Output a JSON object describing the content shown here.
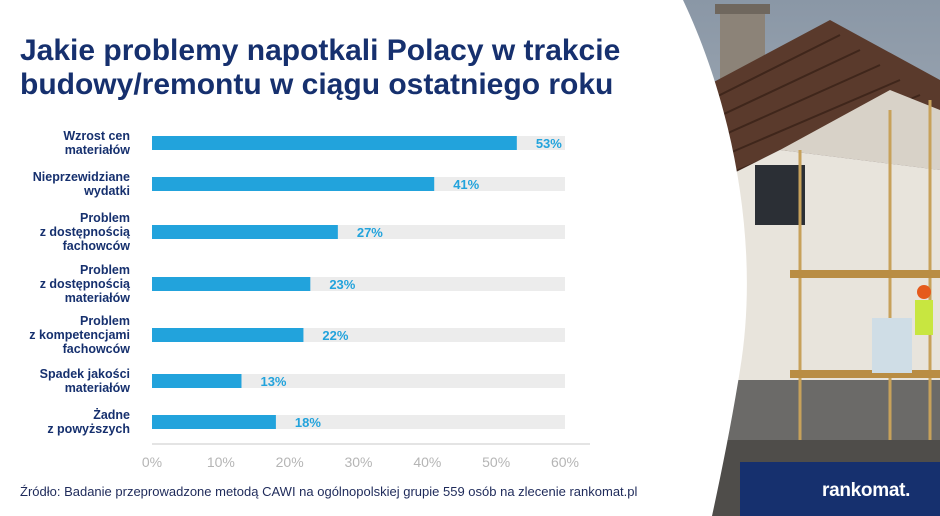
{
  "title": "Jakie problemy napotkali Polacy w trakcie budowy/remontu w ciągu ostatniego roku",
  "source": "Źródło: Badanie przeprowadzone metodą CAWI na ogólnopolskiej grupie 559 osób na zlecenie rankomat.pl",
  "logo": {
    "text": "rankomat."
  },
  "colors": {
    "bar": "#22a3dc",
    "track": "#ececec",
    "title": "#16306e",
    "band": "#16306e",
    "tick": "#b5b5b5"
  },
  "chart_data": {
    "type": "bar",
    "orientation": "horizontal",
    "categories": [
      [
        "Wzrost cen",
        "materiałów"
      ],
      [
        "Nieprzewidziane",
        "wydatki"
      ],
      [
        "Problem",
        "z dostępnością",
        "fachowców"
      ],
      [
        "Problem",
        "z dostępnością",
        "materiałów"
      ],
      [
        "Problem",
        "z kompetencjami",
        "fachowców"
      ],
      [
        "Spadek jakości",
        "materiałów"
      ],
      [
        "Żadne",
        "z powyższych"
      ]
    ],
    "values": [
      53,
      41,
      27,
      23,
      22,
      13,
      18
    ],
    "value_labels": [
      "53%",
      "41%",
      "27%",
      "23%",
      "22%",
      "13%",
      "18%"
    ],
    "xlim": [
      0,
      60
    ],
    "ticks": [
      "0%",
      "10%",
      "20%",
      "30%",
      "40%",
      "50%",
      "60%"
    ],
    "grid": false,
    "legend": "none"
  }
}
